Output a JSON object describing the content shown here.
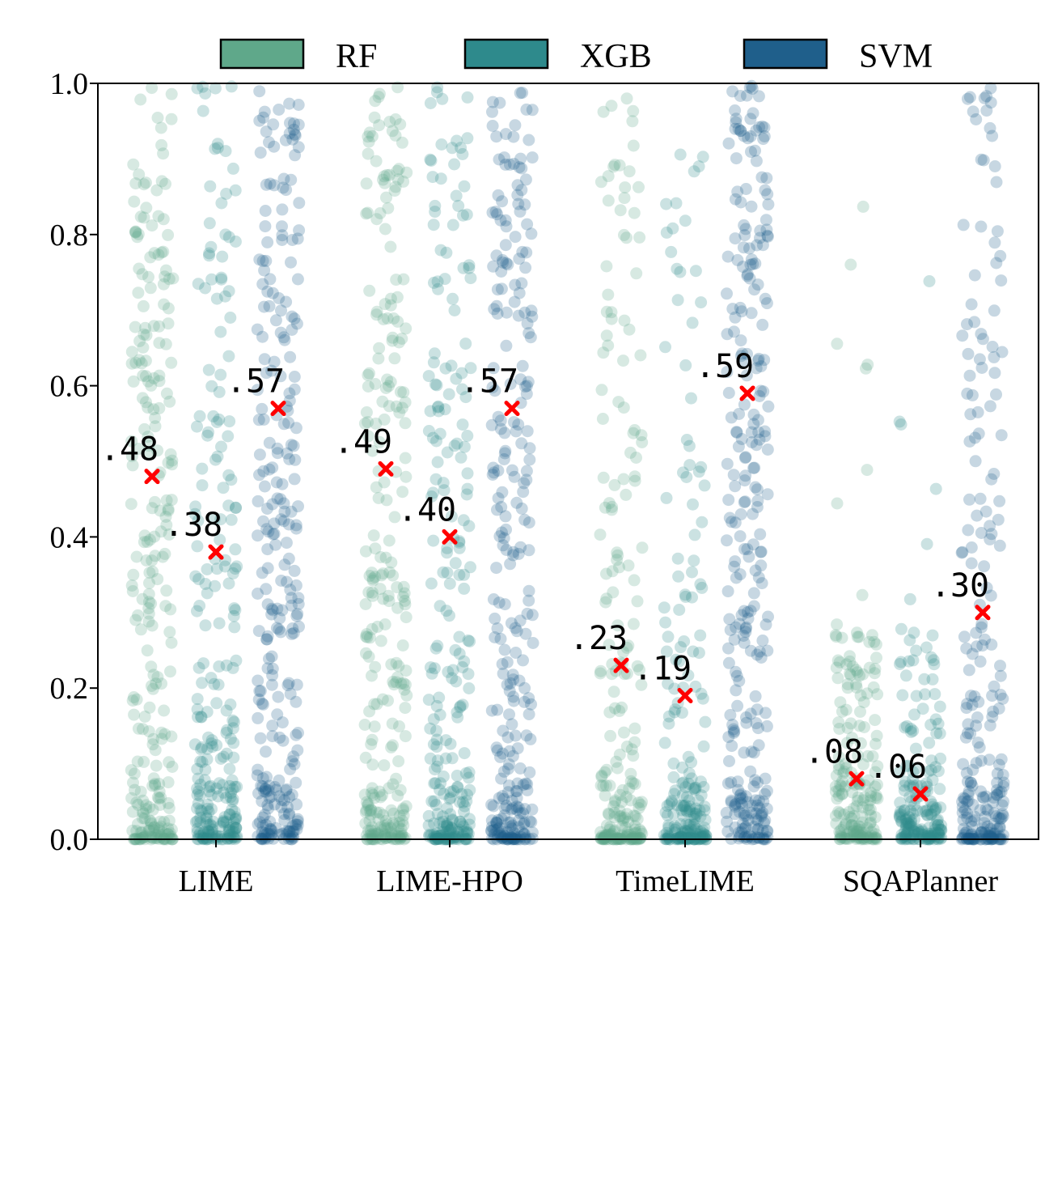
{
  "chart_data": {
    "type": "scatter",
    "subtype": "strip-plot",
    "title": "",
    "xlabel": "",
    "ylabel": "",
    "ylim": [
      0,
      1
    ],
    "yticks": [
      0.0,
      0.2,
      0.4,
      0.6,
      0.8,
      1.0
    ],
    "ytick_labels": [
      "0.0",
      "0.2",
      "0.4",
      "0.6",
      "0.8",
      "1.0"
    ],
    "categories": [
      "LIME",
      "LIME-HPO",
      "TimeLIME",
      "SQAPlanner"
    ],
    "legend": {
      "placement": "top-center",
      "entries": [
        "RF",
        "XGB",
        "SVM"
      ]
    },
    "colors": {
      "RF": "#5fa88a",
      "XGB": "#2e8a8c",
      "SVM": "#1f5f8b",
      "mean_marker": "#ff0000"
    },
    "point_alpha": 0.25,
    "series": [
      {
        "name": "RF",
        "means": [
          0.48,
          0.49,
          0.23,
          0.08
        ],
        "mean_labels": [
          ".48",
          ".49",
          ".23",
          ".08"
        ]
      },
      {
        "name": "XGB",
        "means": [
          0.38,
          0.4,
          0.19,
          0.06
        ],
        "mean_labels": [
          ".38",
          ".40",
          ".19",
          ".06"
        ]
      },
      {
        "name": "SVM",
        "means": [
          0.57,
          0.57,
          0.59,
          0.3
        ],
        "mean_labels": [
          ".57",
          ".57",
          ".59",
          ".30"
        ]
      }
    ]
  }
}
